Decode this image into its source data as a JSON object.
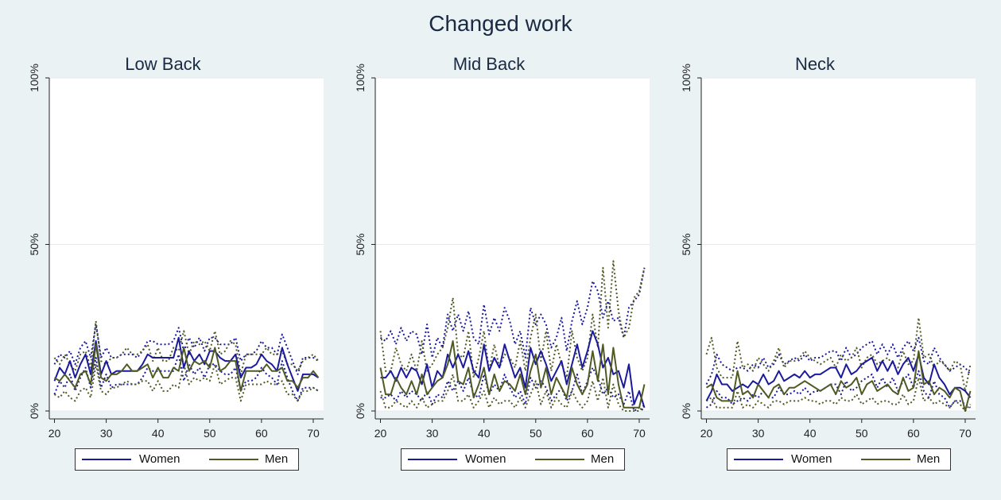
{
  "title": "Changed work",
  "colors": {
    "women": "#1a1a9c",
    "men": "#4f5a24",
    "background": "#eaf2f3",
    "plot_bg": "#ffffff"
  },
  "chart_data": [
    {
      "type": "line",
      "title": "Low Back",
      "x": [
        20,
        21,
        22,
        23,
        24,
        25,
        26,
        27,
        28,
        29,
        30,
        31,
        32,
        33,
        34,
        35,
        36,
        37,
        38,
        39,
        40,
        41,
        42,
        43,
        44,
        45,
        46,
        47,
        48,
        49,
        50,
        51,
        52,
        53,
        54,
        55,
        56,
        57,
        58,
        59,
        60,
        61,
        62,
        63,
        64,
        65,
        66,
        67,
        68,
        69,
        70,
        71
      ],
      "xticks": [
        "20",
        "30",
        "40",
        "50",
        "60",
        "70"
      ],
      "yticks": [
        "0%",
        "50%",
        "100%"
      ],
      "ylim": [
        0,
        100
      ],
      "xlim": [
        19,
        72
      ],
      "legend": [
        "Women",
        "Men"
      ],
      "series": [
        {
          "name": "Women",
          "values": [
            9,
            13,
            11,
            15,
            10,
            14,
            17,
            11,
            21,
            11,
            15,
            11,
            12,
            12,
            12,
            12,
            12,
            14,
            17,
            16,
            16,
            16,
            16,
            16,
            22,
            13,
            18,
            15,
            17,
            14,
            18,
            18,
            16,
            15,
            15,
            17,
            10,
            13,
            13,
            14,
            17,
            15,
            14,
            12,
            19,
            14,
            10,
            6,
            11,
            11,
            11,
            10
          ]
        },
        {
          "name": "Men",
          "values": [
            10,
            9,
            11,
            9,
            7,
            11,
            12,
            8,
            20,
            10,
            9,
            11,
            11,
            12,
            14,
            12,
            12,
            13,
            14,
            10,
            13,
            10,
            10,
            13,
            12,
            19,
            12,
            15,
            14,
            15,
            13,
            19,
            12,
            13,
            15,
            15,
            6,
            12,
            12,
            12,
            12,
            14,
            12,
            12,
            13,
            9,
            9,
            7,
            10,
            10,
            12,
            10
          ]
        },
        {
          "name": "",
          "values": [
            14,
            17,
            16,
            18,
            14,
            19,
            21,
            16,
            26,
            16,
            19,
            16,
            16,
            17,
            17,
            17,
            16,
            18,
            21,
            21,
            20,
            20,
            20,
            21,
            25,
            18,
            22,
            19,
            22,
            18,
            22,
            22,
            20,
            20,
            20,
            22,
            15,
            17,
            17,
            18,
            21,
            19,
            19,
            17,
            23,
            19,
            15,
            11,
            16,
            16,
            16,
            15
          ]
        },
        {
          "name": "",
          "values": [
            5,
            9,
            7,
            11,
            6,
            10,
            13,
            7,
            16,
            7,
            11,
            7,
            8,
            8,
            8,
            8,
            8,
            10,
            13,
            12,
            12,
            12,
            12,
            12,
            17,
            9,
            14,
            11,
            13,
            10,
            14,
            14,
            12,
            11,
            11,
            13,
            6,
            9,
            9,
            10,
            13,
            11,
            10,
            8,
            15,
            10,
            6,
            3,
            7,
            7,
            7,
            6
          ]
        },
        {
          "name": "",
          "values": [
            16,
            14,
            17,
            14,
            12,
            17,
            18,
            13,
            27,
            15,
            14,
            16,
            16,
            17,
            19,
            17,
            17,
            18,
            20,
            15,
            19,
            15,
            15,
            19,
            18,
            24,
            17,
            21,
            20,
            21,
            18,
            24,
            17,
            18,
            21,
            20,
            11,
            17,
            17,
            17,
            17,
            19,
            17,
            17,
            18,
            14,
            14,
            12,
            15,
            16,
            17,
            15
          ]
        },
        {
          "name": "",
          "values": [
            5,
            4,
            6,
            4,
            3,
            6,
            7,
            4,
            14,
            6,
            5,
            7,
            7,
            8,
            9,
            8,
            8,
            9,
            9,
            6,
            9,
            6,
            6,
            8,
            7,
            14,
            8,
            10,
            9,
            10,
            9,
            14,
            8,
            9,
            10,
            10,
            3,
            8,
            8,
            8,
            8,
            9,
            8,
            8,
            9,
            5,
            5,
            3,
            6,
            6,
            7,
            6
          ]
        }
      ]
    },
    {
      "type": "line",
      "title": "Mid Back",
      "x": [
        20,
        21,
        22,
        23,
        24,
        25,
        26,
        27,
        28,
        29,
        30,
        31,
        32,
        33,
        34,
        35,
        36,
        37,
        38,
        39,
        40,
        41,
        42,
        43,
        44,
        45,
        46,
        47,
        48,
        49,
        50,
        51,
        52,
        53,
        54,
        55,
        56,
        57,
        58,
        59,
        60,
        61,
        62,
        63,
        64,
        65,
        66,
        67,
        68,
        69,
        70,
        71
      ],
      "xticks": [
        "20",
        "30",
        "40",
        "50",
        "60",
        "70"
      ],
      "yticks": [
        "0%",
        "50%",
        "100%"
      ],
      "ylim": [
        0,
        100
      ],
      "xlim": [
        19,
        72
      ],
      "legend": [
        "Women",
        "Men"
      ],
      "series": [
        {
          "name": "Women",
          "values": [
            10,
            10,
            12,
            9,
            13,
            10,
            13,
            12,
            8,
            14,
            7,
            12,
            10,
            17,
            13,
            17,
            13,
            18,
            12,
            10,
            20,
            12,
            16,
            13,
            20,
            15,
            10,
            13,
            7,
            19,
            14,
            18,
            14,
            9,
            12,
            15,
            8,
            14,
            20,
            13,
            18,
            24,
            20,
            13,
            16,
            11,
            12,
            7,
            14,
            2,
            6,
            1
          ]
        },
        {
          "name": "Men",
          "values": [
            13,
            5,
            5,
            10,
            7,
            5,
            9,
            5,
            11,
            5,
            7,
            9,
            10,
            14,
            21,
            9,
            8,
            13,
            4,
            8,
            13,
            5,
            11,
            6,
            9,
            8,
            6,
            11,
            5,
            12,
            17,
            7,
            13,
            5,
            10,
            7,
            4,
            13,
            8,
            5,
            8,
            18,
            9,
            20,
            5,
            19,
            8,
            1,
            1,
            1,
            1,
            8
          ]
        },
        {
          "name": "",
          "values": [
            22,
            21,
            24,
            20,
            25,
            21,
            24,
            23,
            17,
            26,
            16,
            22,
            19,
            29,
            24,
            29,
            24,
            30,
            22,
            20,
            32,
            23,
            28,
            24,
            31,
            27,
            20,
            24,
            16,
            31,
            26,
            29,
            26,
            19,
            22,
            28,
            18,
            27,
            33,
            26,
            31,
            39,
            36,
            28,
            33,
            27,
            28,
            22,
            31,
            33,
            35,
            43
          ]
        },
        {
          "name": "",
          "values": [
            4,
            4,
            5,
            3,
            6,
            4,
            6,
            5,
            3,
            6,
            2,
            5,
            4,
            9,
            6,
            9,
            6,
            10,
            5,
            4,
            11,
            5,
            8,
            6,
            11,
            7,
            4,
            6,
            2,
            10,
            7,
            9,
            7,
            3,
            5,
            7,
            3,
            6,
            11,
            5,
            9,
            13,
            10,
            5,
            7,
            4,
            5,
            2,
            6,
            0,
            1,
            0
          ]
        },
        {
          "name": "",
          "values": [
            24,
            12,
            12,
            19,
            14,
            12,
            17,
            12,
            21,
            12,
            14,
            17,
            19,
            25,
            34,
            17,
            16,
            24,
            10,
            16,
            24,
            12,
            20,
            13,
            17,
            16,
            13,
            21,
            12,
            22,
            29,
            15,
            24,
            12,
            20,
            14,
            10,
            24,
            16,
            12,
            16,
            29,
            19,
            43,
            25,
            45,
            30,
            22,
            25,
            34,
            36,
            43
          ]
        },
        {
          "name": "",
          "values": [
            6,
            1,
            1,
            3,
            2,
            1,
            3,
            1,
            4,
            1,
            2,
            3,
            3,
            6,
            11,
            3,
            3,
            5,
            1,
            3,
            6,
            1,
            4,
            2,
            3,
            3,
            1,
            4,
            1,
            5,
            9,
            2,
            6,
            1,
            4,
            2,
            1,
            6,
            3,
            1,
            3,
            9,
            3,
            10,
            1,
            8,
            2,
            0,
            0,
            0,
            0,
            2
          ]
        }
      ]
    },
    {
      "type": "line",
      "title": "Neck",
      "x": [
        20,
        21,
        22,
        23,
        24,
        25,
        26,
        27,
        28,
        29,
        30,
        31,
        32,
        33,
        34,
        35,
        36,
        37,
        38,
        39,
        40,
        41,
        42,
        43,
        44,
        45,
        46,
        47,
        48,
        49,
        50,
        51,
        52,
        53,
        54,
        55,
        56,
        57,
        58,
        59,
        60,
        61,
        62,
        63,
        64,
        65,
        66,
        67,
        68,
        69,
        70,
        71
      ],
      "xticks": [
        "20",
        "30",
        "40",
        "50",
        "60",
        "70"
      ],
      "yticks": [
        "0%",
        "50%",
        "100%"
      ],
      "ylim": [
        0,
        100
      ],
      "xlim": [
        19,
        72
      ],
      "legend": [
        "Women",
        "Men"
      ],
      "series": [
        {
          "name": "Women",
          "values": [
            3,
            6,
            11,
            8,
            8,
            6,
            7,
            8,
            7,
            9,
            8,
            11,
            8,
            9,
            12,
            9,
            10,
            11,
            10,
            12,
            10,
            11,
            11,
            12,
            13,
            13,
            10,
            14,
            11,
            12,
            14,
            15,
            16,
            12,
            15,
            12,
            15,
            11,
            14,
            16,
            12,
            17,
            10,
            8,
            14,
            10,
            8,
            5,
            7,
            7,
            6,
            4
          ]
        },
        {
          "name": "Men",
          "values": [
            7,
            8,
            4,
            3,
            3,
            3,
            12,
            5,
            6,
            4,
            8,
            6,
            4,
            7,
            8,
            5,
            7,
            7,
            8,
            9,
            8,
            7,
            6,
            7,
            8,
            5,
            9,
            7,
            8,
            10,
            5,
            8,
            9,
            6,
            7,
            8,
            6,
            5,
            10,
            6,
            7,
            18,
            8,
            9,
            5,
            7,
            6,
            4,
            7,
            6,
            0,
            6
          ]
        },
        {
          "name": "",
          "values": [
            8,
            11,
            17,
            14,
            13,
            12,
            13,
            13,
            12,
            14,
            13,
            16,
            13,
            14,
            17,
            14,
            15,
            16,
            15,
            17,
            15,
            16,
            16,
            17,
            18,
            18,
            15,
            19,
            16,
            17,
            19,
            20,
            21,
            17,
            20,
            17,
            20,
            16,
            19,
            21,
            18,
            22,
            15,
            14,
            19,
            16,
            14,
            12,
            13,
            14,
            13,
            11
          ]
        },
        {
          "name": "",
          "values": [
            1,
            2,
            6,
            4,
            4,
            2,
            3,
            4,
            3,
            5,
            4,
            6,
            4,
            4,
            7,
            5,
            5,
            6,
            5,
            7,
            5,
            6,
            6,
            7,
            8,
            8,
            5,
            9,
            6,
            7,
            9,
            10,
            11,
            7,
            10,
            7,
            10,
            6,
            9,
            11,
            7,
            12,
            6,
            4,
            9,
            5,
            4,
            1,
            3,
            3,
            2,
            1
          ]
        },
        {
          "name": "",
          "values": [
            17,
            22,
            13,
            10,
            10,
            10,
            21,
            13,
            14,
            12,
            16,
            14,
            12,
            15,
            19,
            13,
            15,
            15,
            16,
            18,
            16,
            15,
            14,
            15,
            16,
            13,
            17,
            15,
            16,
            19,
            13,
            16,
            17,
            14,
            15,
            16,
            14,
            13,
            18,
            14,
            15,
            28,
            16,
            17,
            13,
            15,
            14,
            12,
            15,
            14,
            6,
            14
          ]
        },
        {
          "name": "",
          "values": [
            3,
            4,
            1,
            1,
            1,
            1,
            6,
            1,
            2,
            1,
            3,
            2,
            1,
            3,
            3,
            2,
            3,
            3,
            3,
            4,
            3,
            3,
            2,
            3,
            3,
            2,
            4,
            3,
            3,
            5,
            2,
            3,
            4,
            2,
            3,
            3,
            2,
            2,
            5,
            2,
            3,
            10,
            3,
            4,
            2,
            3,
            2,
            1,
            3,
            2,
            0,
            2
          ]
        }
      ]
    }
  ]
}
